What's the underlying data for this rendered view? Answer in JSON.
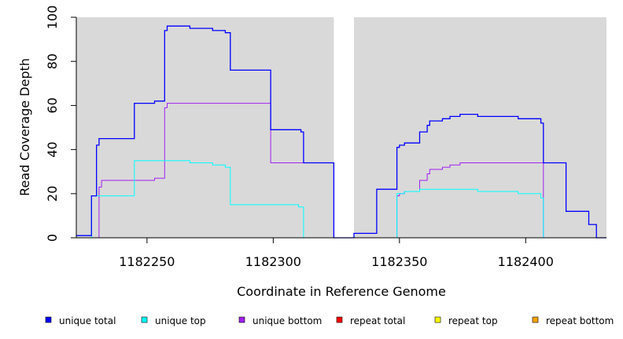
{
  "chart_data": {
    "type": "line",
    "xlabel": "Coordinate in Reference Genome",
    "ylabel": "Read Coverage Depth",
    "xlim": [
      1182222,
      1182432
    ],
    "ylim": [
      0,
      100
    ],
    "x_ticks": [
      1182250,
      1182300,
      1182350,
      1182400
    ],
    "y_ticks": [
      0,
      20,
      40,
      60,
      80,
      100
    ],
    "gap": [
      1182324,
      1182332
    ],
    "grid": false,
    "legend_position": "bottom",
    "series": [
      {
        "name": "unique total",
        "color": "#0000ff",
        "points": [
          [
            1182222,
            1
          ],
          [
            1182228,
            1
          ],
          [
            1182228,
            19
          ],
          [
            1182230,
            19
          ],
          [
            1182230,
            42
          ],
          [
            1182231,
            42
          ],
          [
            1182231,
            45
          ],
          [
            1182245,
            45
          ],
          [
            1182245,
            61
          ],
          [
            1182253,
            61
          ],
          [
            1182253,
            62
          ],
          [
            1182257,
            62
          ],
          [
            1182257,
            94
          ],
          [
            1182258,
            94
          ],
          [
            1182258,
            96
          ],
          [
            1182267,
            96
          ],
          [
            1182267,
            95
          ],
          [
            1182276,
            95
          ],
          [
            1182276,
            94
          ],
          [
            1182281,
            94
          ],
          [
            1182281,
            93
          ],
          [
            1182283,
            93
          ],
          [
            1182283,
            76
          ],
          [
            1182299,
            76
          ],
          [
            1182299,
            49
          ],
          [
            1182311,
            49
          ],
          [
            1182311,
            48
          ],
          [
            1182312,
            48
          ],
          [
            1182312,
            34
          ],
          [
            1182324,
            34
          ],
          [
            1182324,
            0
          ],
          [
            1182332,
            0
          ],
          [
            1182332,
            2
          ],
          [
            1182341,
            2
          ],
          [
            1182341,
            22
          ],
          [
            1182349,
            22
          ],
          [
            1182349,
            41
          ],
          [
            1182350,
            41
          ],
          [
            1182350,
            42
          ],
          [
            1182352,
            42
          ],
          [
            1182352,
            43
          ],
          [
            1182358,
            43
          ],
          [
            1182358,
            48
          ],
          [
            1182361,
            48
          ],
          [
            1182361,
            51
          ],
          [
            1182362,
            51
          ],
          [
            1182362,
            53
          ],
          [
            1182367,
            53
          ],
          [
            1182367,
            54
          ],
          [
            1182370,
            54
          ],
          [
            1182370,
            55
          ],
          [
            1182374,
            55
          ],
          [
            1182374,
            56
          ],
          [
            1182381,
            56
          ],
          [
            1182381,
            55
          ],
          [
            1182397,
            55
          ],
          [
            1182397,
            54
          ],
          [
            1182406,
            54
          ],
          [
            1182406,
            52
          ],
          [
            1182407,
            52
          ],
          [
            1182407,
            34
          ],
          [
            1182416,
            34
          ],
          [
            1182416,
            12
          ],
          [
            1182425,
            12
          ],
          [
            1182425,
            6
          ],
          [
            1182428,
            6
          ],
          [
            1182428,
            0
          ],
          [
            1182432,
            0
          ]
        ]
      },
      {
        "name": "unique top",
        "color": "#00ffff",
        "points": [
          [
            1182222,
            0
          ],
          [
            1182228,
            0
          ],
          [
            1182228,
            19
          ],
          [
            1182245,
            19
          ],
          [
            1182245,
            35
          ],
          [
            1182267,
            35
          ],
          [
            1182267,
            34
          ],
          [
            1182276,
            34
          ],
          [
            1182276,
            33
          ],
          [
            1182281,
            33
          ],
          [
            1182281,
            32
          ],
          [
            1182283,
            32
          ],
          [
            1182283,
            15
          ],
          [
            1182310,
            15
          ],
          [
            1182310,
            14
          ],
          [
            1182312,
            14
          ],
          [
            1182312,
            0
          ],
          [
            1182324,
            0
          ],
          [
            1182332,
            0
          ],
          [
            1182349,
            0
          ],
          [
            1182349,
            20
          ],
          [
            1182352,
            20
          ],
          [
            1182352,
            21
          ],
          [
            1182358,
            21
          ],
          [
            1182358,
            22
          ],
          [
            1182381,
            22
          ],
          [
            1182381,
            21
          ],
          [
            1182397,
            21
          ],
          [
            1182397,
            20
          ],
          [
            1182406,
            20
          ],
          [
            1182406,
            18
          ],
          [
            1182407,
            18
          ],
          [
            1182407,
            0
          ],
          [
            1182432,
            0
          ]
        ]
      },
      {
        "name": "unique bottom",
        "color": "#a020f0",
        "points": [
          [
            1182222,
            0
          ],
          [
            1182231,
            0
          ],
          [
            1182231,
            23
          ],
          [
            1182232,
            23
          ],
          [
            1182232,
            26
          ],
          [
            1182253,
            26
          ],
          [
            1182253,
            27
          ],
          [
            1182257,
            27
          ],
          [
            1182257,
            59
          ],
          [
            1182258,
            59
          ],
          [
            1182258,
            61
          ],
          [
            1182299,
            61
          ],
          [
            1182299,
            34
          ],
          [
            1182324,
            34
          ],
          [
            1182324,
            0
          ],
          [
            1182332,
            0
          ],
          [
            1182349,
            0
          ],
          [
            1182349,
            19
          ],
          [
            1182350,
            19
          ],
          [
            1182350,
            20
          ],
          [
            1182352,
            20
          ],
          [
            1182352,
            21
          ],
          [
            1182358,
            21
          ],
          [
            1182358,
            26
          ],
          [
            1182361,
            26
          ],
          [
            1182361,
            29
          ],
          [
            1182362,
            29
          ],
          [
            1182362,
            31
          ],
          [
            1182367,
            31
          ],
          [
            1182367,
            32
          ],
          [
            1182370,
            32
          ],
          [
            1182370,
            33
          ],
          [
            1182374,
            33
          ],
          [
            1182374,
            34
          ],
          [
            1182407,
            34
          ],
          [
            1182407,
            0
          ],
          [
            1182432,
            0
          ]
        ]
      },
      {
        "name": "repeat total",
        "color": "#ff0000",
        "points": [
          [
            1182222,
            0
          ],
          [
            1182432,
            0
          ]
        ]
      },
      {
        "name": "repeat top",
        "color": "#ffff00",
        "points": [
          [
            1182222,
            0
          ],
          [
            1182432,
            0
          ]
        ]
      },
      {
        "name": "repeat bottom",
        "color": "#ffa500",
        "points": [
          [
            1182222,
            0
          ],
          [
            1182432,
            0
          ]
        ]
      }
    ]
  }
}
